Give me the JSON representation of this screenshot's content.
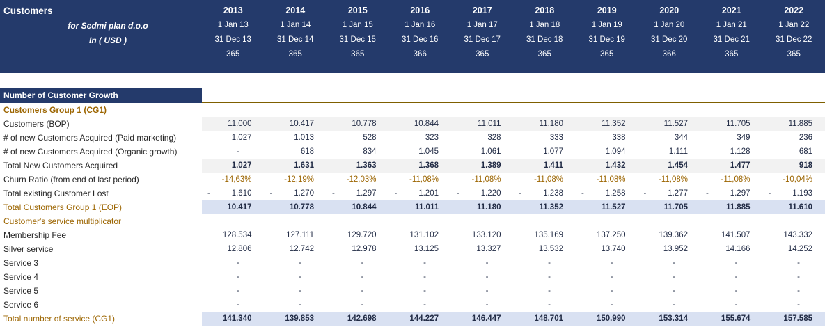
{
  "header": {
    "title": "Customers",
    "company_line": "for Sedmi plan d.o.o",
    "currency_line": "In ( USD )",
    "columns": [
      {
        "year": "2013",
        "start": "1 Jan 13",
        "end": "31 Dec 13",
        "days": "365"
      },
      {
        "year": "2014",
        "start": "1 Jan 14",
        "end": "31 Dec 14",
        "days": "365"
      },
      {
        "year": "2015",
        "start": "1 Jan 15",
        "end": "31 Dec 15",
        "days": "365"
      },
      {
        "year": "2016",
        "start": "1 Jan 16",
        "end": "31 Dec 16",
        "days": "366"
      },
      {
        "year": "2017",
        "start": "1 Jan 17",
        "end": "31 Dec 17",
        "days": "365"
      },
      {
        "year": "2018",
        "start": "1 Jan 18",
        "end": "31 Dec 18",
        "days": "365"
      },
      {
        "year": "2019",
        "start": "1 Jan 19",
        "end": "31 Dec 19",
        "days": "365"
      },
      {
        "year": "2020",
        "start": "1 Jan 20",
        "end": "31 Dec 20",
        "days": "366"
      },
      {
        "year": "2021",
        "start": "1 Jan 21",
        "end": "31 Dec 21",
        "days": "365"
      },
      {
        "year": "2022",
        "start": "1 Jan 22",
        "end": "31 Dec 22",
        "days": "365"
      }
    ]
  },
  "section_title": "Number of Customer Growth",
  "colors": {
    "navy": "#243A6B",
    "gold_text": "#9C6500",
    "gold_rule": "#7F6000",
    "fill_gray": "#F2F2F2",
    "fill_blue": "#D9E1F2"
  },
  "table": {
    "rows": [
      {
        "label": "Customers Group 1 (CG1)",
        "label_style": "gold-bold",
        "fill": "none",
        "value_style": "normal",
        "values": []
      },
      {
        "label": "Customers (BOP)",
        "label_style": "normal",
        "fill": "gray",
        "value_style": "normal",
        "values": [
          "11.000",
          "10.417",
          "10.778",
          "10.844",
          "11.011",
          "11.180",
          "11.352",
          "11.527",
          "11.705",
          "11.885"
        ]
      },
      {
        "label": "# of new Customers Acquired (Paid marketing)",
        "label_style": "normal",
        "fill": "none",
        "value_style": "normal",
        "values": [
          "1.027",
          "1.013",
          "528",
          "323",
          "328",
          "333",
          "338",
          "344",
          "349",
          "236"
        ]
      },
      {
        "label": "# of new Customers Acquired (Organic growth)",
        "label_style": "normal",
        "fill": "none",
        "value_style": "normal",
        "values": [
          "-",
          "618",
          "834",
          "1.045",
          "1.061",
          "1.077",
          "1.094",
          "1.111",
          "1.128",
          "681"
        ]
      },
      {
        "label": "Total New Customers Acquired",
        "label_style": "normal",
        "fill": "gray",
        "value_style": "bold",
        "values": [
          "1.027",
          "1.631",
          "1.363",
          "1.368",
          "1.389",
          "1.411",
          "1.432",
          "1.454",
          "1.477",
          "918"
        ]
      },
      {
        "label": "Churn Ratio (from end of last period)",
        "label_style": "normal",
        "fill": "none",
        "value_style": "gold",
        "values": [
          "-14,63%",
          "-12,19%",
          "-12,03%",
          "-11,08%",
          "-11,08%",
          "-11,08%",
          "-11,08%",
          "-11,08%",
          "-11,08%",
          "-10,04%"
        ]
      },
      {
        "label": "Total existing Customer Lost",
        "label_style": "normal",
        "fill": "none",
        "value_style": "negative-accounting",
        "values": [
          "1.610",
          "1.270",
          "1.297",
          "1.201",
          "1.220",
          "1.238",
          "1.258",
          "1.277",
          "1.297",
          "1.193"
        ]
      },
      {
        "label": "Total Customers Group 1 (EOP)",
        "label_style": "gold",
        "fill": "blue",
        "value_style": "bold",
        "values": [
          "10.417",
          "10.778",
          "10.844",
          "11.011",
          "11.180",
          "11.352",
          "11.527",
          "11.705",
          "11.885",
          "11.610"
        ]
      },
      {
        "label": "Customer's service multiplicator",
        "label_style": "gold",
        "fill": "none",
        "value_style": "normal",
        "values": []
      },
      {
        "label": "Membership Fee",
        "label_style": "normal",
        "fill": "none",
        "value_style": "normal",
        "values": [
          "128.534",
          "127.111",
          "129.720",
          "131.102",
          "133.120",
          "135.169",
          "137.250",
          "139.362",
          "141.507",
          "143.332"
        ]
      },
      {
        "label": "Silver service",
        "label_style": "normal",
        "fill": "none",
        "value_style": "normal",
        "values": [
          "12.806",
          "12.742",
          "12.978",
          "13.125",
          "13.327",
          "13.532",
          "13.740",
          "13.952",
          "14.166",
          "14.252"
        ]
      },
      {
        "label": "Service 3",
        "label_style": "normal",
        "fill": "none",
        "value_style": "normal",
        "values": [
          "-",
          "-",
          "-",
          "-",
          "-",
          "-",
          "-",
          "-",
          "-",
          "-"
        ]
      },
      {
        "label": "Service 4",
        "label_style": "normal",
        "fill": "none",
        "value_style": "normal",
        "values": [
          "-",
          "-",
          "-",
          "-",
          "-",
          "-",
          "-",
          "-",
          "-",
          "-"
        ]
      },
      {
        "label": "Service 5",
        "label_style": "normal",
        "fill": "none",
        "value_style": "normal",
        "values": [
          "-",
          "-",
          "-",
          "-",
          "-",
          "-",
          "-",
          "-",
          "-",
          "-"
        ]
      },
      {
        "label": "Service 6",
        "label_style": "normal",
        "fill": "none",
        "value_style": "normal",
        "values": [
          "-",
          "-",
          "-",
          "-",
          "-",
          "-",
          "-",
          "-",
          "-",
          "-"
        ]
      },
      {
        "label": "Total number of service (CG1)",
        "label_style": "gold",
        "fill": "blue",
        "value_style": "bold",
        "values": [
          "141.340",
          "139.853",
          "142.698",
          "144.227",
          "146.447",
          "148.701",
          "150.990",
          "153.314",
          "155.674",
          "157.585"
        ]
      }
    ]
  }
}
